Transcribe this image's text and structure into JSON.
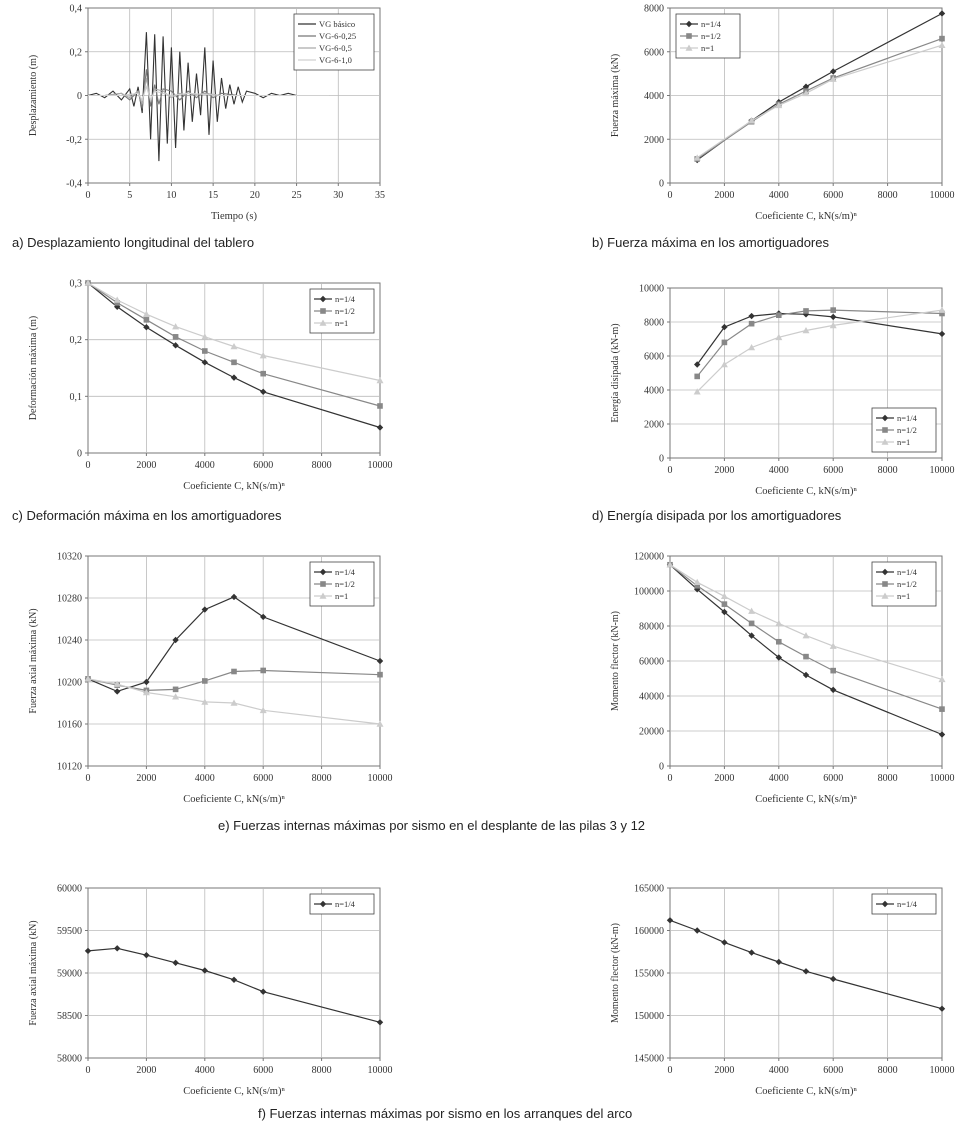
{
  "captions": {
    "a": "a) Desplazamiento longitudinal del tablero",
    "b": "b) Fuerza máxima en los amortiguadores",
    "c": "c) Deformación máxima en los amortiguadores",
    "d": "d) Energía disipada por los amortiguadores",
    "e": "e) Fuerzas internas máximas por sismo en el desplante de las pilas 3 y 12",
    "f": "f) Fuerzas internas máximas por sismo en los arranques del arco"
  },
  "chart_data": [
    {
      "id": "a",
      "type": "line",
      "xlabel": "Tiempo (s)",
      "ylabel": "Desplazamiento (m)",
      "xlim": [
        0,
        35
      ],
      "ylim": [
        -0.4,
        0.4
      ],
      "xticks": [
        "0",
        "5",
        "10",
        "15",
        "20",
        "25",
        "30",
        "35"
      ],
      "yticks": [
        "-0,4",
        "-0,2",
        "0",
        "0,2",
        "0,4"
      ],
      "grid": true,
      "legend": "top-right",
      "series": [
        {
          "name": "VG básico",
          "color": "#333333",
          "x": [
            0,
            1,
            2,
            3,
            4,
            5,
            5.5,
            6,
            6.5,
            7,
            7.5,
            8,
            8.5,
            9,
            9.5,
            10,
            10.5,
            11,
            11.5,
            12,
            12.5,
            13,
            13.5,
            14,
            14.5,
            15,
            15.5,
            16,
            16.5,
            17,
            17.5,
            18,
            18.5,
            19,
            20,
            21,
            22,
            23,
            24,
            25,
            26,
            27,
            28,
            29
          ],
          "y": [
            0,
            0.01,
            -0.01,
            0.02,
            -0.02,
            0.03,
            -0.05,
            0.04,
            -0.08,
            0.29,
            -0.2,
            0.28,
            -0.3,
            0.27,
            -0.22,
            0.22,
            -0.24,
            0.2,
            -0.16,
            0.15,
            -0.12,
            0.1,
            -0.09,
            0.22,
            -0.18,
            0.16,
            -0.12,
            0.08,
            -0.06,
            0.05,
            -0.04,
            0.04,
            -0.03,
            0.02,
            0.01,
            -0.01,
            0.01,
            0,
            0.01,
            0,
            0,
            0,
            0,
            0
          ]
        },
        {
          "name": "VG-6-0,25",
          "color": "#777777",
          "x": [
            0,
            2,
            4,
            5,
            6,
            6.5,
            7,
            7.5,
            8,
            8.5,
            9,
            10,
            11,
            12,
            13,
            14,
            15,
            16,
            18,
            20,
            25,
            29
          ],
          "y": [
            0,
            0,
            0.01,
            -0.02,
            0.02,
            -0.06,
            0.12,
            -0.05,
            0.05,
            -0.04,
            0.03,
            0.02,
            -0.02,
            0.02,
            -0.01,
            0.02,
            -0.01,
            0.01,
            0,
            0,
            0,
            0
          ]
        },
        {
          "name": "VG-6-0,5",
          "color": "#aaaaaa",
          "x": [
            0,
            2,
            4,
            5,
            6,
            6.5,
            7,
            7.5,
            8,
            9,
            10,
            11,
            12,
            14,
            16,
            20,
            25,
            29
          ],
          "y": [
            0,
            0,
            0.01,
            -0.01,
            0.02,
            -0.04,
            0.08,
            -0.03,
            0.03,
            0.02,
            -0.01,
            0.01,
            0,
            0.01,
            0,
            0,
            0,
            0
          ]
        },
        {
          "name": "VG-6-1,0",
          "color": "#d0d0d0",
          "x": [
            0,
            2,
            4,
            6,
            6.5,
            7,
            7.5,
            8,
            10,
            12,
            16,
            20,
            29
          ],
          "y": [
            0,
            0,
            0,
            0.01,
            -0.02,
            0.04,
            -0.02,
            0.02,
            0,
            0.01,
            0,
            0,
            0
          ]
        }
      ]
    },
    {
      "id": "b",
      "type": "line",
      "xlabel": "Coeficiente C, kN(s/m)ⁿ",
      "ylabel": "Fuerza máxima (kN)",
      "xlim": [
        0,
        10000
      ],
      "ylim": [
        0,
        8000
      ],
      "xticks": [
        "0",
        "2000",
        "4000",
        "6000",
        "8000",
        "10000"
      ],
      "yticks": [
        "0",
        "2000",
        "4000",
        "6000",
        "8000"
      ],
      "grid": true,
      "legend": "top-left",
      "series": [
        {
          "name": "n=1/4",
          "color": "#333333",
          "marker": "diamond",
          "x": [
            1000,
            3000,
            4000,
            5000,
            6000,
            10000
          ],
          "y": [
            1050,
            2850,
            3700,
            4400,
            5100,
            7750
          ]
        },
        {
          "name": "n=1/2",
          "color": "#888888",
          "marker": "square",
          "x": [
            1000,
            3000,
            4000,
            5000,
            6000,
            10000
          ],
          "y": [
            1100,
            2800,
            3600,
            4200,
            4800,
            6600
          ]
        },
        {
          "name": "n=1",
          "color": "#cccccc",
          "marker": "triangle",
          "x": [
            1000,
            3000,
            4000,
            5000,
            6000,
            10000
          ],
          "y": [
            1150,
            2850,
            3550,
            4100,
            4750,
            6300
          ]
        }
      ]
    },
    {
      "id": "c",
      "type": "line",
      "xlabel": "Coeficiente C, kN(s/m)ⁿ",
      "ylabel": "Deformación máxima (m)",
      "xlim": [
        0,
        10000
      ],
      "ylim": [
        0,
        0.3
      ],
      "xticks": [
        "0",
        "2000",
        "4000",
        "6000",
        "8000",
        "10000"
      ],
      "yticks": [
        "0",
        "0,1",
        "0,2",
        "0,3"
      ],
      "grid": true,
      "legend": "top-right",
      "series": [
        {
          "name": "n=1/4",
          "color": "#333333",
          "marker": "diamond",
          "x": [
            0,
            1000,
            2000,
            3000,
            4000,
            5000,
            6000,
            10000
          ],
          "y": [
            0.3,
            0.258,
            0.222,
            0.19,
            0.16,
            0.133,
            0.108,
            0.045
          ]
        },
        {
          "name": "n=1/2",
          "color": "#888888",
          "marker": "square",
          "x": [
            0,
            1000,
            2000,
            3000,
            4000,
            5000,
            6000,
            10000
          ],
          "y": [
            0.3,
            0.265,
            0.235,
            0.205,
            0.18,
            0.16,
            0.14,
            0.083
          ]
        },
        {
          "name": "n=1",
          "color": "#cccccc",
          "marker": "triangle",
          "x": [
            0,
            1000,
            2000,
            3000,
            4000,
            5000,
            6000,
            10000
          ],
          "y": [
            0.3,
            0.27,
            0.245,
            0.223,
            0.205,
            0.188,
            0.172,
            0.128
          ]
        }
      ]
    },
    {
      "id": "d",
      "type": "line",
      "xlabel": "Coeficiente C, kN(s/m)ⁿ",
      "ylabel": "Energía disipada (kN-m)",
      "xlim": [
        0,
        10000
      ],
      "ylim": [
        0,
        10000
      ],
      "xticks": [
        "0",
        "2000",
        "4000",
        "6000",
        "8000",
        "10000"
      ],
      "yticks": [
        "0",
        "2000",
        "4000",
        "6000",
        "8000",
        "10000"
      ],
      "grid": true,
      "legend": "bottom-right",
      "series": [
        {
          "name": "n=1/4",
          "color": "#333333",
          "marker": "diamond",
          "x": [
            1000,
            2000,
            3000,
            4000,
            5000,
            6000,
            10000
          ],
          "y": [
            5500,
            7700,
            8350,
            8500,
            8450,
            8300,
            7300
          ]
        },
        {
          "name": "n=1/2",
          "color": "#888888",
          "marker": "square",
          "x": [
            1000,
            2000,
            3000,
            4000,
            5000,
            6000,
            10000
          ],
          "y": [
            4800,
            6800,
            7900,
            8400,
            8650,
            8700,
            8500
          ]
        },
        {
          "name": "n=1",
          "color": "#cccccc",
          "marker": "triangle",
          "x": [
            1000,
            2000,
            3000,
            4000,
            5000,
            6000,
            10000
          ],
          "y": [
            3900,
            5500,
            6500,
            7100,
            7500,
            7800,
            8700
          ]
        }
      ]
    },
    {
      "id": "e1",
      "type": "line",
      "xlabel": "Coeficiente C, kN(s/m)ⁿ",
      "ylabel": "Fuerza axial máxima (kN)",
      "xlim": [
        0,
        10000
      ],
      "ylim": [
        10120,
        10320
      ],
      "xticks": [
        "0",
        "2000",
        "4000",
        "6000",
        "8000",
        "10000"
      ],
      "yticks": [
        "10120",
        "10160",
        "10200",
        "10240",
        "10280",
        "10320"
      ],
      "grid": true,
      "legend": "top-right",
      "series": [
        {
          "name": "n=1/4",
          "color": "#333333",
          "marker": "diamond",
          "x": [
            0,
            1000,
            2000,
            3000,
            4000,
            5000,
            6000,
            10000
          ],
          "y": [
            10203,
            10191,
            10200,
            10240,
            10269,
            10281,
            10262,
            10220
          ]
        },
        {
          "name": "n=1/2",
          "color": "#888888",
          "marker": "square",
          "x": [
            0,
            1000,
            2000,
            3000,
            4000,
            5000,
            6000,
            10000
          ],
          "y": [
            10203,
            10197,
            10192,
            10193,
            10201,
            10210,
            10211,
            10207
          ]
        },
        {
          "name": "n=1",
          "color": "#cccccc",
          "marker": "triangle",
          "x": [
            0,
            1000,
            2000,
            3000,
            4000,
            5000,
            6000,
            10000
          ],
          "y": [
            10203,
            10198,
            10190,
            10186,
            10181,
            10180,
            10173,
            10160
          ]
        }
      ]
    },
    {
      "id": "e2",
      "type": "line",
      "xlabel": "Coeficiente C, kN(s/m)ⁿ",
      "ylabel": "Momento flector (kN-m)",
      "xlim": [
        0,
        10000
      ],
      "ylim": [
        0,
        120000
      ],
      "xticks": [
        "0",
        "2000",
        "4000",
        "6000",
        "8000",
        "10000"
      ],
      "yticks": [
        "0",
        "20000",
        "40000",
        "60000",
        "80000",
        "100000",
        "120000"
      ],
      "grid": true,
      "legend": "top-right",
      "series": [
        {
          "name": "n=1/4",
          "color": "#333333",
          "marker": "diamond",
          "x": [
            0,
            1000,
            2000,
            3000,
            4000,
            5000,
            6000,
            10000
          ],
          "y": [
            115000,
            101000,
            88000,
            74500,
            62000,
            52000,
            43500,
            18000
          ]
        },
        {
          "name": "n=1/2",
          "color": "#888888",
          "marker": "square",
          "x": [
            0,
            1000,
            2000,
            3000,
            4000,
            5000,
            6000,
            10000
          ],
          "y": [
            115000,
            103000,
            92500,
            81500,
            71000,
            62500,
            54500,
            32500
          ]
        },
        {
          "name": "n=1",
          "color": "#cccccc",
          "marker": "triangle",
          "x": [
            0,
            1000,
            2000,
            3000,
            4000,
            5000,
            6000,
            10000
          ],
          "y": [
            115000,
            105000,
            97000,
            88500,
            81500,
            74500,
            68500,
            49500
          ]
        }
      ]
    },
    {
      "id": "f1",
      "type": "line",
      "xlabel": "Coeficiente C, kN(s/m)ⁿ",
      "ylabel": "Fuerza axial máxima (kN)",
      "xlim": [
        0,
        10000
      ],
      "ylim": [
        58000,
        60000
      ],
      "xticks": [
        "0",
        "2000",
        "4000",
        "6000",
        "8000",
        "10000"
      ],
      "yticks": [
        "58000",
        "58500",
        "59000",
        "59500",
        "60000"
      ],
      "grid": true,
      "legend": "top-right",
      "series": [
        {
          "name": "n=1/4",
          "color": "#333333",
          "marker": "diamond",
          "x": [
            0,
            1000,
            2000,
            3000,
            4000,
            5000,
            6000,
            10000
          ],
          "y": [
            59260,
            59290,
            59210,
            59120,
            59030,
            58920,
            58780,
            58420
          ]
        }
      ]
    },
    {
      "id": "f2",
      "type": "line",
      "xlabel": "Coeficiente C, kN(s/m)ⁿ",
      "ylabel": "Momento flector (kN-m)",
      "xlim": [
        0,
        10000
      ],
      "ylim": [
        145000,
        165000
      ],
      "xticks": [
        "0",
        "2000",
        "4000",
        "6000",
        "8000",
        "10000"
      ],
      "yticks": [
        "145000",
        "150000",
        "155000",
        "160000",
        "165000"
      ],
      "grid": true,
      "legend": "top-right",
      "series": [
        {
          "name": "n=1/4",
          "color": "#333333",
          "marker": "diamond",
          "x": [
            0,
            1000,
            2000,
            3000,
            4000,
            5000,
            6000,
            10000
          ],
          "y": [
            161200,
            160000,
            158600,
            157400,
            156300,
            155200,
            154300,
            150800
          ]
        }
      ]
    }
  ]
}
